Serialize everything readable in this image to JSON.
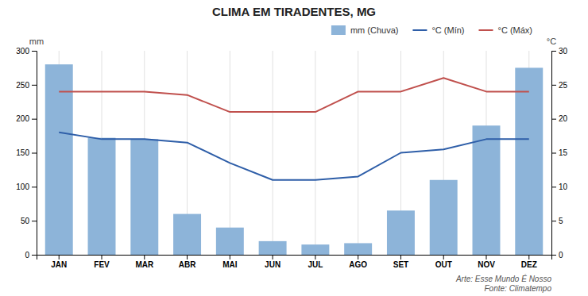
{
  "chart_data": {
    "type": "bar",
    "title": "CLIMA EM TIRADENTES, MG",
    "categories": [
      "JAN",
      "FEV",
      "MAR",
      "ABR",
      "MAI",
      "JUN",
      "JUL",
      "AGO",
      "SET",
      "OUT",
      "NOV",
      "DEZ"
    ],
    "series": [
      {
        "name": "mm (Chuva)",
        "type": "bar",
        "color": "#8DB4D9",
        "values": [
          280,
          172,
          170,
          60,
          40,
          20,
          15,
          17,
          65,
          110,
          190,
          275
        ]
      },
      {
        "name": "°C (Mín)",
        "type": "line",
        "axis": "y2",
        "color": "#2E5EA8",
        "values": [
          18,
          17,
          17,
          16.5,
          13.5,
          11,
          11,
          11.5,
          15,
          15.5,
          17,
          17
        ]
      },
      {
        "name": "°C (Máx)",
        "type": "line",
        "axis": "y2",
        "color": "#C0504D",
        "values": [
          24,
          24,
          24,
          23.5,
          21,
          21,
          21,
          24,
          24,
          26,
          24,
          24
        ]
      }
    ],
    "ylabel": "mm",
    "y2label": "°C",
    "ylim": [
      0,
      300
    ],
    "yticks": [
      0,
      50,
      100,
      150,
      200,
      250,
      300
    ],
    "y2lim": [
      0,
      30
    ],
    "y2ticks": [
      0,
      5,
      10,
      15,
      20,
      25,
      30
    ],
    "grid": "x",
    "legend": "upper right",
    "annotations": [
      "Arte: Esse Mundo É Nosso",
      "Fonte: Climatempo"
    ]
  }
}
